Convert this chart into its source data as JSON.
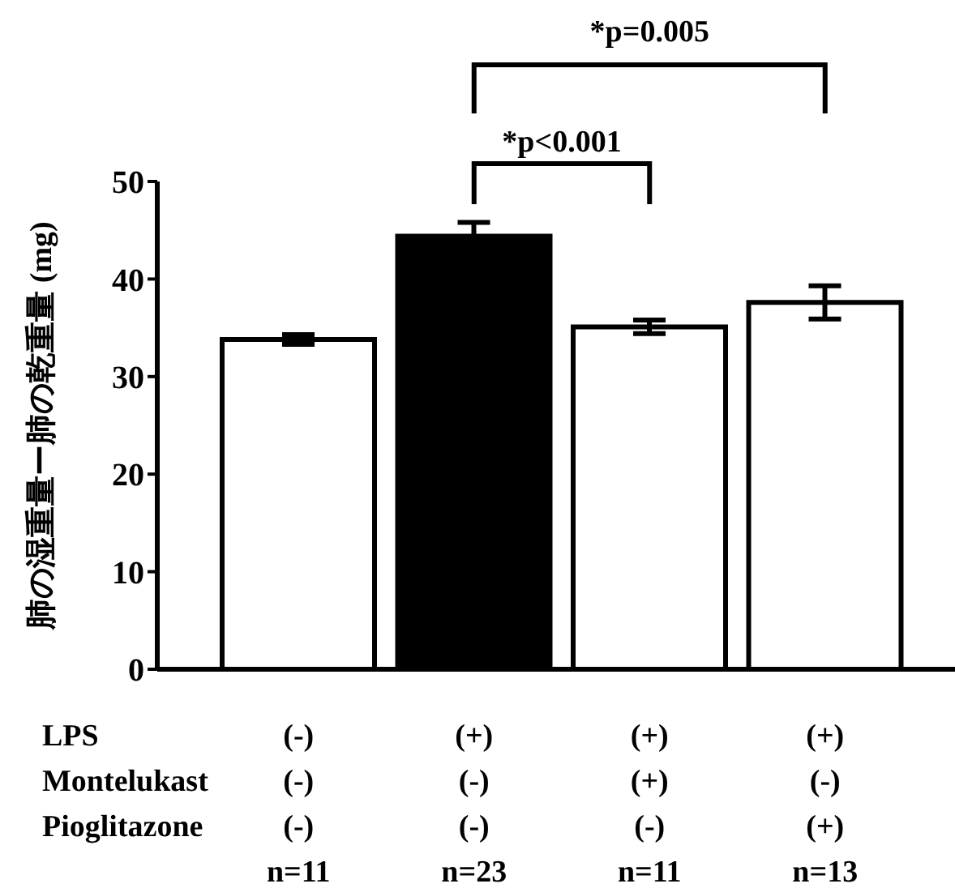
{
  "chart_data": {
    "type": "bar",
    "ylabel": "肺の湿重量ー肺の乾重量 (mg)",
    "categories": [
      "(-)\n(-)\n(-)\nn=11",
      "(+)\n(-)\n(-)\nn=23",
      "(+)\n(+)\n(-)\nn=11",
      "(+)\n(-)\n(+)\nn=13"
    ],
    "values": [
      33.8,
      44.4,
      35.1,
      37.6
    ],
    "errors": [
      0.5,
      1.4,
      0.7,
      1.7
    ],
    "colors": [
      "#ffffff",
      "#000000",
      "#ffffff",
      "#ffffff"
    ],
    "ylim": [
      0,
      50
    ],
    "yticks": [
      0,
      10,
      20,
      30,
      40,
      50
    ],
    "grid": false,
    "legend": false,
    "annotations": [
      "*p<0.001",
      "*p=0.005",
      "LPS",
      "Montelukast",
      "Pioglitazone"
    ]
  }
}
